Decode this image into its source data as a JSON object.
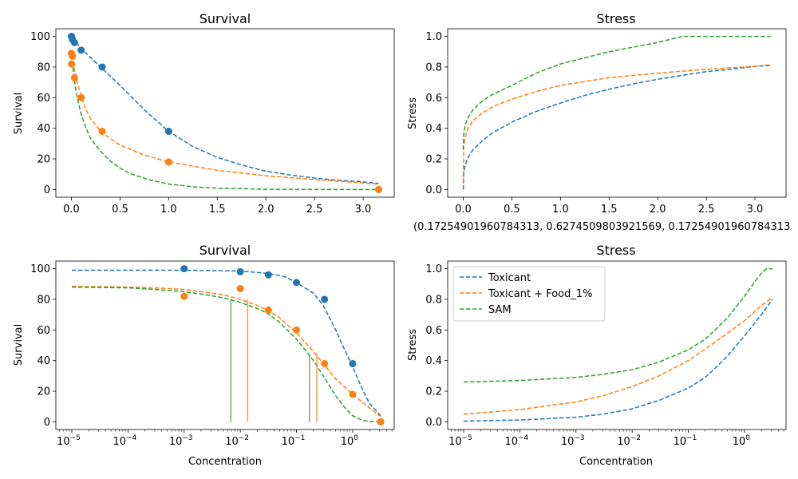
{
  "colors": {
    "blue": "#1f77b4",
    "orange": "#ff7f0e",
    "green": "#2ca02c"
  },
  "stray_text": "(0.17254901960784313, 0.6274509803921569, 0.17254901960784313",
  "legend": [
    "Toxicant",
    "Toxicant + Food_1%",
    "SAM"
  ],
  "chart_data": [
    {
      "type": "scatter",
      "title": "Survival",
      "xlabel": "",
      "ylabel": "Survival",
      "xscale": "linear",
      "xlim": [
        -0.16,
        3.32
      ],
      "ylim": [
        -5,
        105
      ],
      "xticks": [
        0,
        0.5,
        1,
        1.5,
        2,
        2.5,
        3
      ],
      "xtick_labels": [
        "0.0",
        "0.5",
        "1.0",
        "1.5",
        "2.0",
        "2.5",
        "3.0"
      ],
      "yticks": [
        0,
        20,
        40,
        60,
        80,
        100
      ],
      "ytick_labels": [
        "0",
        "20",
        "40",
        "60",
        "80",
        "100"
      ],
      "series": [
        {
          "color": "blue",
          "style": "dashed",
          "x": [
            0,
            0.05,
            0.1,
            0.2,
            0.316,
            0.5,
            0.75,
            1.0,
            1.25,
            1.5,
            1.75,
            2.0,
            2.25,
            2.5,
            2.75,
            3.0,
            3.16
          ],
          "y": [
            99,
            96,
            92,
            86,
            79,
            68,
            52,
            38,
            28,
            21,
            16,
            12,
            9.5,
            7.5,
            6,
            5,
            4
          ]
        },
        {
          "color": "orange",
          "style": "dashed",
          "x": [
            0,
            0.02,
            0.05,
            0.1,
            0.15,
            0.2,
            0.316,
            0.5,
            0.75,
            1.0,
            1.5,
            2.0,
            2.5,
            3.0,
            3.16
          ],
          "y": [
            88,
            82,
            72,
            61,
            52,
            46,
            37,
            29,
            22.5,
            18,
            12.5,
            9,
            6.5,
            4.3,
            3.5
          ]
        },
        {
          "color": "green",
          "style": "dashed",
          "x": [
            0,
            0.02,
            0.05,
            0.1,
            0.15,
            0.2,
            0.3,
            0.4,
            0.5,
            0.6,
            0.8,
            1.0,
            1.25,
            1.5,
            2.0,
            2.5,
            3.0,
            3.16
          ],
          "y": [
            88,
            77,
            63,
            49,
            40,
            33,
            25,
            18.5,
            14,
            10.5,
            6.3,
            3.6,
            1.8,
            0.9,
            0.2,
            0.05,
            0,
            0
          ]
        },
        {
          "color": "blue",
          "style": "points",
          "x": [
            0,
            0.001,
            0.01,
            0.0316,
            0.1,
            0.316,
            1.0,
            3.16
          ],
          "y": [
            100,
            100,
            98,
            96,
            91,
            80,
            38,
            0
          ]
        },
        {
          "color": "orange",
          "style": "points",
          "x": [
            0,
            0.001,
            0.01,
            0.0316,
            0.1,
            0.316,
            1.0,
            3.16
          ],
          "y": [
            89,
            82,
            87,
            73,
            60,
            38,
            18,
            0
          ]
        }
      ]
    },
    {
      "type": "line",
      "title": "Stress",
      "xlabel": "",
      "ylabel": "Stress",
      "xscale": "linear",
      "xlim": [
        -0.16,
        3.32
      ],
      "ylim": [
        -0.05,
        1.05
      ],
      "xticks": [
        0,
        0.5,
        1,
        1.5,
        2,
        2.5,
        3
      ],
      "xtick_labels": [
        "0.0",
        "0.5",
        "1.0",
        "1.5",
        "2.0",
        "2.5",
        "3.0"
      ],
      "yticks": [
        0,
        0.2,
        0.4,
        0.6,
        0.8,
        1.0
      ],
      "ytick_labels": [
        "0.0",
        "0.2",
        "0.4",
        "0.6",
        "0.8",
        "1.0"
      ],
      "series": [
        {
          "color": "blue",
          "style": "dashed",
          "x": [
            0,
            0.005,
            0.02,
            0.05,
            0.1,
            0.2,
            0.3,
            0.5,
            0.75,
            1.0,
            1.25,
            1.5,
            1.75,
            2.0,
            2.25,
            2.5,
            2.75,
            3.0,
            3.16
          ],
          "y": [
            0.0,
            0.1,
            0.16,
            0.21,
            0.26,
            0.32,
            0.37,
            0.44,
            0.51,
            0.565,
            0.615,
            0.655,
            0.69,
            0.72,
            0.745,
            0.77,
            0.785,
            0.805,
            0.81
          ]
        },
        {
          "color": "orange",
          "style": "dashed",
          "x": [
            0,
            0.005,
            0.02,
            0.05,
            0.1,
            0.2,
            0.3,
            0.5,
            0.75,
            1.0,
            1.5,
            2.0,
            2.5,
            3.0,
            3.16
          ],
          "y": [
            0.05,
            0.28,
            0.34,
            0.4,
            0.45,
            0.5,
            0.54,
            0.59,
            0.64,
            0.68,
            0.73,
            0.76,
            0.785,
            0.805,
            0.815
          ]
        },
        {
          "color": "green",
          "style": "dashed",
          "x": [
            0,
            0.005,
            0.02,
            0.05,
            0.1,
            0.2,
            0.3,
            0.5,
            0.75,
            1.0,
            1.5,
            2.0,
            2.25,
            2.5,
            3.0,
            3.16
          ],
          "y": [
            0.26,
            0.36,
            0.42,
            0.47,
            0.52,
            0.58,
            0.62,
            0.68,
            0.76,
            0.82,
            0.9,
            0.96,
            1.0,
            1.0,
            1.0,
            1.0
          ]
        }
      ]
    },
    {
      "type": "scatter",
      "title": "Survival",
      "xlabel": "Concentration",
      "ylabel": "Survival",
      "xscale": "log",
      "xlim": [
        5.2e-06,
        5.5
      ],
      "ylim": [
        -5,
        105
      ],
      "xticks": [
        1e-05,
        0.0001,
        0.001,
        0.01,
        0.1,
        1
      ],
      "xtick_labels": [
        [
          "10",
          "−5"
        ],
        [
          "10",
          "−4"
        ],
        [
          "10",
          "−3"
        ],
        [
          "10",
          "−2"
        ],
        [
          "10",
          "−1"
        ],
        [
          "10",
          "0"
        ]
      ],
      "yticks": [
        0,
        20,
        40,
        60,
        80,
        100
      ],
      "ytick_labels": [
        "0",
        "20",
        "40",
        "60",
        "80",
        "100"
      ],
      "series": [
        {
          "color": "blue",
          "style": "dashed",
          "x": [
            1e-05,
            0.0001,
            0.001,
            0.01,
            0.03,
            0.06,
            0.1,
            0.2,
            0.3,
            0.5,
            0.7,
            1.0,
            1.5,
            2.0,
            3.16
          ],
          "y": [
            99,
            99,
            99,
            98.5,
            97,
            95,
            91,
            84,
            76,
            60,
            48,
            36,
            21,
            12,
            4
          ]
        },
        {
          "color": "orange",
          "style": "dashed",
          "x": [
            1e-05,
            0.0001,
            0.0003,
            0.001,
            0.002,
            0.005,
            0.01,
            0.02,
            0.03,
            0.05,
            0.1,
            0.2,
            0.3,
            0.5,
            1.0,
            2.0,
            3.16
          ],
          "y": [
            88.5,
            88,
            87.5,
            86.5,
            85,
            83,
            80,
            76,
            73,
            68,
            58,
            46,
            38,
            28,
            18,
            9,
            3.5
          ]
        },
        {
          "color": "green",
          "style": "dashed",
          "x": [
            1e-05,
            0.0001,
            0.0003,
            0.001,
            0.002,
            0.005,
            0.01,
            0.02,
            0.03,
            0.05,
            0.1,
            0.15,
            0.2,
            0.3,
            0.5,
            0.7,
            1.0,
            1.5,
            2.0,
            3.16
          ],
          "y": [
            88,
            87.5,
            86.5,
            85,
            83.5,
            81,
            78,
            74,
            71,
            65,
            54,
            46,
            40,
            30,
            17,
            10,
            4,
            1,
            0.2,
            0
          ]
        },
        {
          "color": "blue",
          "style": "points",
          "x": [
            0.001,
            0.01,
            0.0316,
            0.1,
            0.316,
            1.0,
            3.16
          ],
          "y": [
            100,
            98,
            96,
            91,
            80,
            38,
            0
          ]
        },
        {
          "color": "orange",
          "style": "points",
          "x": [
            0.001,
            0.01,
            0.0316,
            0.1,
            0.316,
            1.0,
            3.16
          ],
          "y": [
            82,
            87,
            73,
            60,
            38,
            18,
            0
          ]
        },
        {
          "color": "green",
          "style": "vlines",
          "x": [
            0.0068,
            0.17
          ],
          "y": [
            80,
            44
          ]
        },
        {
          "color": "orange",
          "style": "vlines",
          "x": [
            0.0135,
            0.23
          ],
          "y": [
            80,
            44
          ]
        }
      ]
    },
    {
      "type": "line",
      "title": "Stress",
      "xlabel": "Concentration",
      "ylabel": "Stress",
      "xscale": "log",
      "xlim": [
        5.2e-06,
        5.5
      ],
      "ylim": [
        -0.05,
        1.05
      ],
      "xticks": [
        1e-05,
        0.0001,
        0.001,
        0.01,
        0.1,
        1
      ],
      "xtick_labels": [
        [
          "10",
          "−5"
        ],
        [
          "10",
          "−4"
        ],
        [
          "10",
          "−3"
        ],
        [
          "10",
          "−2"
        ],
        [
          "10",
          "−1"
        ],
        [
          "10",
          "0"
        ]
      ],
      "yticks": [
        0,
        0.2,
        0.4,
        0.6,
        0.8,
        1.0
      ],
      "ytick_labels": [
        "0.0",
        "0.2",
        "0.4",
        "0.6",
        "0.8",
        "1.0"
      ],
      "legend": "top-left",
      "series": [
        {
          "name": "Toxicant",
          "color": "blue",
          "style": "dashed",
          "x": [
            1e-05,
            0.0001,
            0.001,
            0.003,
            0.01,
            0.03,
            0.1,
            0.2,
            0.3,
            0.5,
            1.0,
            2.0,
            3.16
          ],
          "y": [
            0.005,
            0.012,
            0.03,
            0.05,
            0.085,
            0.14,
            0.22,
            0.29,
            0.35,
            0.43,
            0.56,
            0.7,
            0.8
          ]
        },
        {
          "name": "Toxicant + Food_1%",
          "color": "orange",
          "style": "dashed",
          "x": [
            1e-05,
            0.0001,
            0.001,
            0.003,
            0.01,
            0.03,
            0.1,
            0.3,
            1.0,
            2.0,
            3.16
          ],
          "y": [
            0.05,
            0.08,
            0.13,
            0.17,
            0.23,
            0.3,
            0.4,
            0.52,
            0.66,
            0.76,
            0.81
          ]
        },
        {
          "name": "SAM",
          "color": "green",
          "style": "dashed",
          "x": [
            1e-05,
            0.0001,
            0.001,
            0.003,
            0.01,
            0.03,
            0.1,
            0.2,
            0.3,
            0.5,
            1.0,
            1.5,
            2.0,
            2.5,
            3.16
          ],
          "y": [
            0.26,
            0.27,
            0.29,
            0.31,
            0.34,
            0.39,
            0.47,
            0.54,
            0.6,
            0.68,
            0.82,
            0.91,
            0.97,
            1.0,
            1.0
          ]
        }
      ]
    }
  ]
}
